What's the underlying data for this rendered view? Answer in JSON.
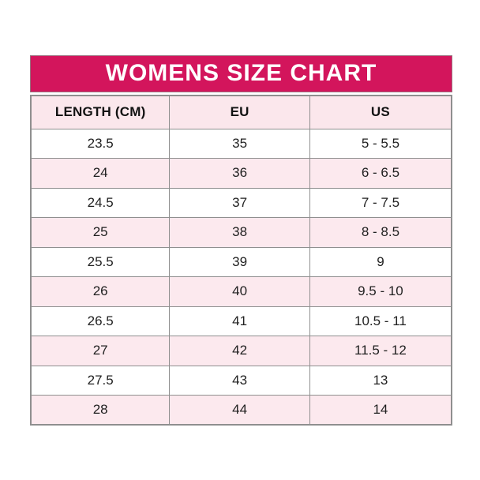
{
  "title": "WOMENS SIZE CHART",
  "table": {
    "columns": [
      "LENGTH (CM)",
      "EU",
      "US"
    ],
    "rows": [
      [
        "23.5",
        "35",
        "5 - 5.5"
      ],
      [
        "24",
        "36",
        "6 - 6.5"
      ],
      [
        "24.5",
        "37",
        "7 - 7.5"
      ],
      [
        "25",
        "38",
        "8 - 8.5"
      ],
      [
        "25.5",
        "39",
        "9"
      ],
      [
        "26",
        "40",
        "9.5 - 10"
      ],
      [
        "26.5",
        "41",
        "10.5 - 11"
      ],
      [
        "27",
        "42",
        "11.5 - 12"
      ],
      [
        "27.5",
        "43",
        "13"
      ],
      [
        "28",
        "44",
        "14"
      ]
    ]
  },
  "chart_data": {
    "type": "table",
    "title": "WOMENS SIZE CHART",
    "columns": [
      "LENGTH (CM)",
      "EU",
      "US"
    ],
    "rows": [
      [
        "23.5",
        "35",
        "5 - 5.5"
      ],
      [
        "24",
        "36",
        "6 - 6.5"
      ],
      [
        "24.5",
        "37",
        "7 - 7.5"
      ],
      [
        "25",
        "38",
        "8 - 8.5"
      ],
      [
        "25.5",
        "39",
        "9"
      ],
      [
        "26",
        "40",
        "9.5 - 10"
      ],
      [
        "26.5",
        "41",
        "10.5 - 11"
      ],
      [
        "27",
        "42",
        "11.5 - 12"
      ],
      [
        "27.5",
        "43",
        "13"
      ],
      [
        "28",
        "44",
        "14"
      ]
    ]
  },
  "colors": {
    "accent": "#d3155c",
    "row_alt": "#fce9ee",
    "header_bg": "#fbe7ec",
    "border": "#8f8f8f",
    "text": "#1f1f1f",
    "title_text": "#ffffff"
  }
}
